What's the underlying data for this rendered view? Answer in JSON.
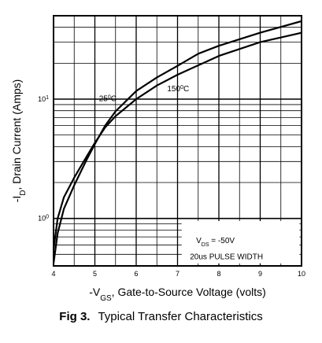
{
  "caption": {
    "label": "Fig 3.",
    "text": "Typical Transfer Characteristics"
  },
  "chart_data": {
    "type": "line",
    "title": "",
    "xlabel": {
      "prefix": "-V",
      "sub": "GS",
      "rest": ", Gate-to-Source Voltage (volts)"
    },
    "ylabel": {
      "prefix": "-I",
      "sub": "D",
      "rest": ", Drain Current (Amps)"
    },
    "xlim": [
      4,
      10
    ],
    "ylim": [
      0.4,
      50
    ],
    "yscale": "log",
    "grid": true,
    "x_ticks": [
      "4",
      "5",
      "6",
      "7",
      "8",
      "9",
      "10"
    ],
    "y_ticks": [
      {
        "value": 1,
        "base": "10",
        "exp": "0"
      },
      {
        "value": 10,
        "base": "10",
        "exp": "1"
      }
    ],
    "series": [
      {
        "name": {
          "base": "25",
          "sup": "0",
          "unit": "C"
        },
        "x": [
          4.0,
          4.1,
          4.25,
          4.5,
          4.8,
          5.0,
          5.25,
          5.5,
          6.0,
          6.5,
          7.0,
          8.0,
          9.0,
          10.0
        ],
        "y": [
          0.55,
          1.0,
          1.5,
          2.2,
          3.3,
          4.3,
          5.8,
          7.2,
          10.0,
          13.0,
          16.0,
          23.0,
          30.0,
          36.0
        ]
      },
      {
        "name": {
          "base": "150",
          "sup": "0",
          "unit": "C"
        },
        "x": [
          4.0,
          4.1,
          4.25,
          4.5,
          4.8,
          5.0,
          5.25,
          5.5,
          6.0,
          6.5,
          7.0,
          7.5,
          8.0,
          9.0,
          10.0
        ],
        "y": [
          0.42,
          0.75,
          1.2,
          1.9,
          3.1,
          4.2,
          6.0,
          7.9,
          11.7,
          15.2,
          19.0,
          24.0,
          28.0,
          36.0,
          45.0
        ]
      }
    ],
    "annotations": [
      {
        "pre": "V",
        "sub": "DS",
        "rest": " = -50V"
      },
      {
        "text": "20us PULSE WIDTH"
      }
    ]
  }
}
